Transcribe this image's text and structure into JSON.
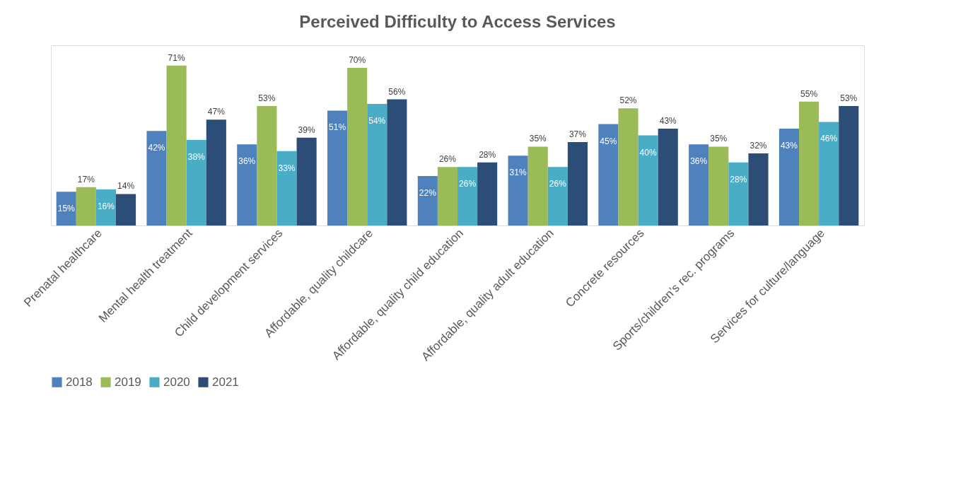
{
  "chart_data": {
    "type": "bar",
    "title": "Perceived Difficulty to Access Services",
    "categories": [
      "Prenatal healthcare",
      "Mental health treatment",
      "Child development services",
      "Affordable, quality childcare",
      "Affordable, quality child education",
      "Affordable, quality adult education",
      "Concrete resources",
      "Sports/children’s rec. programs",
      "Services for culture/language"
    ],
    "series": [
      {
        "name": "2018",
        "color": "#4f81bd",
        "values": [
          15,
          42,
          36,
          51,
          22,
          31,
          45,
          36,
          43
        ],
        "value_labels": [
          "15%",
          "42%",
          "36%",
          "51%",
          "22%",
          "31%",
          "45%",
          "36%",
          "43%"
        ]
      },
      {
        "name": "2019",
        "color": "#9bbb59",
        "values": [
          17,
          71,
          53,
          70,
          26,
          35,
          52,
          35,
          55
        ],
        "value_labels": [
          "17%",
          "71%",
          "53%",
          "70%",
          "26%",
          "35%",
          "52%",
          "35%",
          "55%"
        ]
      },
      {
        "name": "2020",
        "color": "#4bacc6",
        "values": [
          16,
          38,
          33,
          54,
          26,
          26,
          40,
          28,
          46
        ],
        "value_labels": [
          "16%",
          "38%",
          "33%",
          "54%",
          "26%",
          "26%",
          "40%",
          "28%",
          "46%"
        ]
      },
      {
        "name": "2021",
        "color": "#2c4d75",
        "values": [
          14,
          47,
          39,
          56,
          28,
          37,
          43,
          32,
          53
        ],
        "value_labels": [
          "14%",
          "47%",
          "39%",
          "56%",
          "28%",
          "37%",
          "43%",
          "32%",
          "53%"
        ]
      }
    ],
    "legend": "bottom",
    "grid": false,
    "tick_labels": "x"
  }
}
